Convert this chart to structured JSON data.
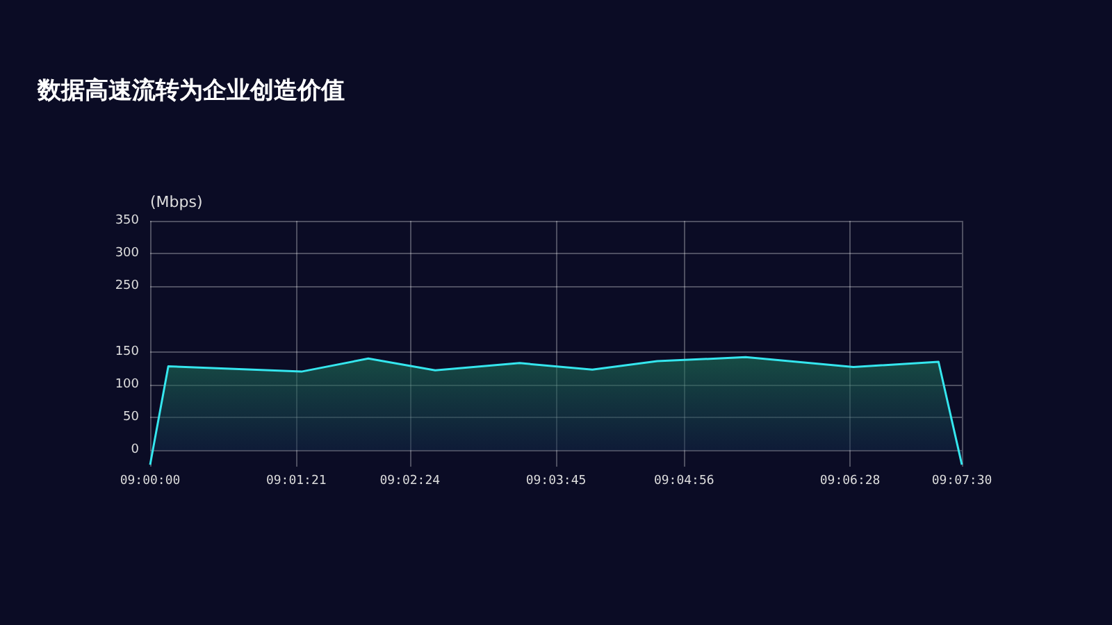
{
  "chart_data": {
    "type": "area",
    "title": "数据高速流转为企业创造价值",
    "ylabel": "(Mbps)",
    "x": [
      9.0,
      9.0028,
      9.0233,
      9.0336,
      9.0439,
      9.0569,
      9.0681,
      9.0781,
      9.0917,
      9.1083,
      9.1214,
      9.125
    ],
    "series": [
      {
        "color": "#35e6ee",
        "values": [
          -22,
          128,
          120,
          140,
          122,
          133,
          123,
          136,
          142,
          127,
          135,
          -22
        ]
      }
    ],
    "xlim": [
      9,
      9.125
    ],
    "xticks": [
      {
        "value": 9,
        "label": "09:00:00"
      },
      {
        "value": 9.0225,
        "label": "09:01:21"
      },
      {
        "value": 9.04,
        "label": "09:02:24"
      },
      {
        "value": 9.0625,
        "label": "09:03:45"
      },
      {
        "value": 9.08222,
        "label": "09:04:56"
      },
      {
        "value": 9.10778,
        "label": "09:06:28"
      },
      {
        "value": 9.125,
        "label": "09:07:30"
      }
    ],
    "ylim": [
      -25,
      350
    ],
    "yticks": [
      0,
      50,
      100,
      150,
      250,
      300,
      350
    ],
    "grid": true,
    "marker": "none",
    "line_style": "solid"
  }
}
